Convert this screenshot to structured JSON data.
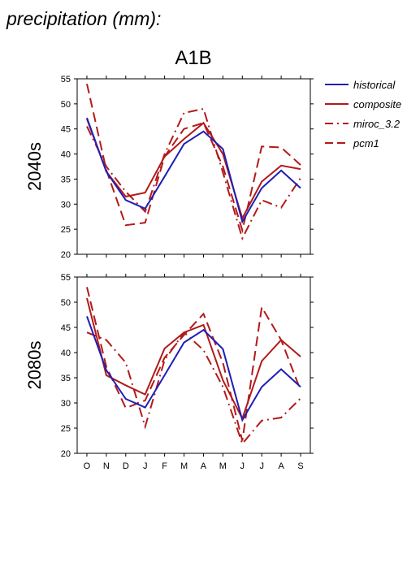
{
  "header": {
    "title": "precipitation (mm):",
    "scenario": "A1B"
  },
  "legend": [
    {
      "name": "historical",
      "color": "#1f1fb4",
      "dash": "solid"
    },
    {
      "name": "composite",
      "color": "#b21a1a",
      "dash": "solid"
    },
    {
      "name": "miroc_3.2",
      "color": "#b21a1a",
      "dash": "dashdot"
    },
    {
      "name": "pcm1",
      "color": "#b21a1a",
      "dash": "dashed"
    }
  ],
  "chart_data": [
    {
      "type": "line",
      "panel_label": "2040s",
      "categories": [
        "O",
        "N",
        "D",
        "J",
        "F",
        "M",
        "A",
        "M",
        "J",
        "J",
        "A",
        "S"
      ],
      "ylim": [
        20,
        55
      ],
      "yticks": [
        20,
        25,
        30,
        35,
        40,
        45,
        50,
        55
      ],
      "series": [
        {
          "name": "historical",
          "values": [
            47.2,
            36.5,
            30.8,
            29.1,
            35.5,
            42.0,
            44.5,
            41.0,
            26.5,
            33.2,
            36.7,
            33.2
          ]
        },
        {
          "name": "composite",
          "values": [
            47.0,
            36.5,
            31.5,
            32.3,
            39.5,
            43.0,
            46.2,
            40.0,
            27.2,
            34.5,
            37.7,
            37.0
          ]
        },
        {
          "name": "miroc_3.2",
          "values": [
            45.5,
            37.5,
            32.5,
            28.5,
            40.0,
            48.2,
            49.0,
            36.3,
            23.2,
            30.8,
            29.3,
            35.2
          ]
        },
        {
          "name": "pcm1",
          "values": [
            54.0,
            36.8,
            25.8,
            26.3,
            39.5,
            45.0,
            46.2,
            37.5,
            24.8,
            41.5,
            41.3,
            37.8
          ]
        }
      ]
    },
    {
      "type": "line",
      "panel_label": "2080s",
      "categories": [
        "O",
        "N",
        "D",
        "J",
        "F",
        "M",
        "A",
        "M",
        "J",
        "J",
        "A",
        "S"
      ],
      "ylim": [
        20,
        55
      ],
      "yticks": [
        20,
        25,
        30,
        35,
        40,
        45,
        50,
        55
      ],
      "series": [
        {
          "name": "historical",
          "values": [
            47.2,
            36.5,
            30.8,
            29.1,
            35.5,
            42.0,
            44.5,
            40.7,
            26.6,
            33.2,
            36.7,
            33.2
          ]
        },
        {
          "name": "composite",
          "values": [
            50.8,
            35.5,
            33.5,
            31.7,
            40.8,
            44.0,
            45.5,
            34.5,
            26.9,
            38.3,
            42.5,
            39.2
          ]
        },
        {
          "name": "miroc_3.2",
          "values": [
            44.0,
            42.5,
            38.0,
            25.3,
            38.5,
            44.0,
            40.5,
            33.2,
            21.9,
            26.5,
            27.1,
            30.9
          ]
        },
        {
          "name": "pcm1",
          "values": [
            53.0,
            37.2,
            29.0,
            30.5,
            39.0,
            43.5,
            47.7,
            38.0,
            22.5,
            49.0,
            42.5,
            32.5
          ]
        }
      ]
    }
  ]
}
